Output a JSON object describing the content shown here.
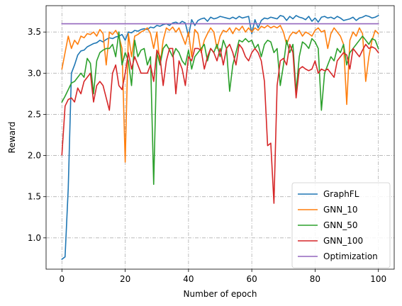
{
  "chart_data": {
    "type": "line",
    "title": "",
    "xlabel": "Number of epoch",
    "ylabel": "Reward",
    "xlim": [
      -5,
      105
    ],
    "ylim": [
      0.62,
      3.82
    ],
    "xticks": [
      0,
      20,
      40,
      60,
      80,
      100
    ],
    "yticks": [
      1.0,
      1.5,
      2.0,
      2.5,
      3.0,
      3.5
    ],
    "xtick_labels": [
      "0",
      "20",
      "40",
      "60",
      "80",
      "100"
    ],
    "ytick_labels": [
      "1.0",
      "1.5",
      "2.0",
      "2.5",
      "3.0",
      "3.5"
    ],
    "grid": true,
    "legend_position": "lower-right",
    "x": [
      0,
      1,
      2,
      3,
      4,
      5,
      6,
      7,
      8,
      9,
      10,
      11,
      12,
      13,
      14,
      15,
      16,
      17,
      18,
      19,
      20,
      21,
      22,
      23,
      24,
      25,
      26,
      27,
      28,
      29,
      30,
      31,
      32,
      33,
      34,
      35,
      36,
      37,
      38,
      39,
      40,
      41,
      42,
      43,
      44,
      45,
      46,
      47,
      48,
      49,
      50,
      51,
      52,
      53,
      54,
      55,
      56,
      57,
      58,
      59,
      60,
      61,
      62,
      63,
      64,
      65,
      66,
      67,
      68,
      69,
      70,
      71,
      72,
      73,
      74,
      75,
      76,
      77,
      78,
      79,
      80,
      81,
      82,
      83,
      84,
      85,
      86,
      87,
      88,
      89,
      90,
      91,
      92,
      93,
      94,
      95,
      96,
      97,
      98,
      99,
      100
    ],
    "series": [
      {
        "name": "GraphFL",
        "color": "#1f77b4",
        "values": [
          0.74,
          0.77,
          1.6,
          3.0,
          3.1,
          3.22,
          3.27,
          3.28,
          3.32,
          3.34,
          3.36,
          3.37,
          3.4,
          3.38,
          3.41,
          3.43,
          3.42,
          3.44,
          3.45,
          3.47,
          3.4,
          3.5,
          3.49,
          3.52,
          3.51,
          3.53,
          3.54,
          3.53,
          3.56,
          3.55,
          3.58,
          3.57,
          3.59,
          3.6,
          3.58,
          3.61,
          3.62,
          3.6,
          3.63,
          3.61,
          3.45,
          3.65,
          3.58,
          3.64,
          3.66,
          3.67,
          3.63,
          3.68,
          3.66,
          3.67,
          3.69,
          3.68,
          3.67,
          3.66,
          3.68,
          3.66,
          3.69,
          3.67,
          3.68,
          3.69,
          3.48,
          3.65,
          3.55,
          3.64,
          3.67,
          3.66,
          3.68,
          3.67,
          3.66,
          3.7,
          3.69,
          3.64,
          3.69,
          3.66,
          3.7,
          3.68,
          3.67,
          3.65,
          3.69,
          3.63,
          3.67,
          3.62,
          3.68,
          3.69,
          3.67,
          3.68,
          3.66,
          3.69,
          3.67,
          3.64,
          3.65,
          3.66,
          3.68,
          3.64,
          3.67,
          3.68,
          3.7,
          3.69,
          3.67,
          3.68,
          3.7
        ]
      },
      {
        "name": "GNN_10",
        "color": "#ff7f0e",
        "values": [
          3.05,
          3.25,
          3.45,
          3.3,
          3.4,
          3.35,
          3.45,
          3.43,
          3.48,
          3.47,
          3.5,
          3.45,
          3.53,
          3.48,
          3.1,
          3.5,
          3.47,
          3.52,
          3.45,
          3.3,
          1.92,
          3.48,
          3.2,
          3.45,
          3.47,
          3.5,
          3.52,
          3.55,
          3.48,
          3.3,
          3.5,
          3.1,
          3.4,
          3.55,
          3.52,
          3.56,
          3.5,
          3.55,
          3.45,
          3.35,
          3.5,
          3.2,
          3.53,
          3.48,
          3.25,
          3.4,
          3.48,
          3.55,
          3.5,
          3.3,
          3.45,
          3.52,
          3.5,
          3.55,
          3.48,
          3.55,
          3.52,
          3.57,
          3.5,
          3.55,
          3.5,
          3.55,
          3.52,
          3.57,
          3.55,
          3.58,
          3.55,
          3.57,
          3.55,
          3.58,
          3.5,
          3.35,
          3.45,
          3.5,
          3.48,
          3.52,
          3.45,
          3.5,
          3.48,
          3.45,
          3.52,
          3.55,
          3.5,
          3.52,
          3.3,
          3.48,
          3.55,
          3.5,
          3.45,
          3.35,
          2.62,
          3.4,
          3.5,
          3.45,
          3.55,
          3.48,
          2.9,
          3.2,
          3.4,
          3.52,
          3.48
        ]
      },
      {
        "name": "GNN_50",
        "color": "#2ca02c",
        "values": [
          2.65,
          2.72,
          2.8,
          2.88,
          2.9,
          2.95,
          3.0,
          2.95,
          3.18,
          3.12,
          2.75,
          3.15,
          3.25,
          3.28,
          3.3,
          3.3,
          3.35,
          3.2,
          3.5,
          3.1,
          3.25,
          3.15,
          2.85,
          3.4,
          3.2,
          3.28,
          3.3,
          3.1,
          3.2,
          1.65,
          3.25,
          3.1,
          3.3,
          3.35,
          3.28,
          3.2,
          3.3,
          3.25,
          3.15,
          3.1,
          3.28,
          3.05,
          3.2,
          3.25,
          3.3,
          3.35,
          3.15,
          3.3,
          3.25,
          3.35,
          3.2,
          3.4,
          3.3,
          2.78,
          3.1,
          3.25,
          3.4,
          3.38,
          3.42,
          3.38,
          3.4,
          3.3,
          3.35,
          3.2,
          3.35,
          3.4,
          3.38,
          3.25,
          3.3,
          2.85,
          3.1,
          3.4,
          3.25,
          3.35,
          2.77,
          3.2,
          3.38,
          3.35,
          3.3,
          3.42,
          3.38,
          3.3,
          2.55,
          3.0,
          3.1,
          3.2,
          3.15,
          3.3,
          3.25,
          3.35,
          3.1,
          3.25,
          3.3,
          3.35,
          3.4,
          3.45,
          3.4,
          3.35,
          3.42,
          3.4,
          3.3
        ]
      },
      {
        "name": "GNN_100",
        "color": "#d62728",
        "values": [
          2.01,
          2.6,
          2.68,
          2.7,
          2.65,
          2.82,
          2.75,
          2.9,
          2.95,
          3.0,
          2.65,
          2.85,
          2.9,
          2.85,
          2.7,
          2.55,
          3.0,
          3.1,
          2.85,
          2.8,
          3.0,
          3.25,
          3.05,
          3.2,
          3.1,
          3.0,
          3.0,
          3.0,
          3.1,
          2.9,
          3.28,
          3.2,
          2.85,
          3.15,
          3.3,
          3.3,
          2.75,
          3.15,
          3.05,
          2.85,
          3.2,
          3.15,
          3.3,
          3.3,
          3.28,
          3.05,
          3.2,
          3.3,
          3.25,
          3.15,
          3.3,
          3.1,
          3.3,
          3.35,
          3.25,
          3.1,
          3.35,
          3.3,
          3.2,
          3.15,
          3.25,
          3.3,
          3.25,
          3.15,
          2.9,
          2.12,
          2.15,
          1.42,
          2.85,
          3.15,
          3.18,
          3.1,
          3.35,
          3.25,
          2.7,
          3.05,
          3.08,
          3.05,
          3.03,
          3.05,
          3.15,
          3.0,
          3.05,
          3.03,
          3.05,
          3.0,
          2.95,
          3.15,
          3.2,
          3.25,
          3.22,
          3.05,
          3.3,
          3.25,
          3.2,
          3.28,
          3.35,
          3.3,
          3.32,
          3.3,
          3.25
        ]
      },
      {
        "name": "Optimization",
        "color": "#9467bd",
        "values": [
          3.6,
          3.6,
          3.6,
          3.6,
          3.6,
          3.6,
          3.6,
          3.6,
          3.6,
          3.6,
          3.6,
          3.6,
          3.6,
          3.6,
          3.6,
          3.6,
          3.6,
          3.6,
          3.6,
          3.6,
          3.6,
          3.6,
          3.6,
          3.6,
          3.6,
          3.6,
          3.6,
          3.6,
          3.6,
          3.6,
          3.6,
          3.6,
          3.6,
          3.6,
          3.6,
          3.6,
          3.6,
          3.6,
          3.6,
          3.6,
          3.6,
          3.6,
          3.6,
          3.6,
          3.6,
          3.6,
          3.6,
          3.6,
          3.6,
          3.6,
          3.6,
          3.6,
          3.6,
          3.6,
          3.6,
          3.6,
          3.6,
          3.6,
          3.6,
          3.6,
          3.6,
          3.6,
          3.6,
          3.6,
          3.6,
          3.6,
          3.6,
          3.6,
          3.6,
          3.6,
          3.6,
          3.6,
          3.6,
          3.6,
          3.6,
          3.6,
          3.6,
          3.6,
          3.6,
          3.6,
          3.6,
          3.6,
          3.6,
          3.6,
          3.6,
          3.6,
          3.6,
          3.6,
          3.6,
          3.6,
          3.6,
          3.6,
          3.6,
          3.6,
          3.6,
          3.6,
          3.6,
          3.6,
          3.6,
          3.6,
          3.6
        ]
      }
    ]
  }
}
